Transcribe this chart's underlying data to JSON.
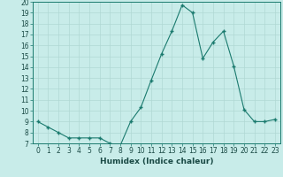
{
  "x": [
    0,
    1,
    2,
    3,
    4,
    5,
    6,
    7,
    8,
    9,
    10,
    11,
    12,
    13,
    14,
    15,
    16,
    17,
    18,
    19,
    20,
    21,
    22,
    23
  ],
  "y": [
    9,
    8.5,
    8,
    7.5,
    7.5,
    7.5,
    7.5,
    7,
    6.8,
    9,
    10.3,
    12.8,
    15.2,
    17.3,
    19.7,
    19.0,
    14.8,
    16.3,
    17.3,
    14.1,
    10.1,
    9.0,
    9.0,
    9.2
  ],
  "line_color": "#1a7a6e",
  "marker_color": "#1a7a6e",
  "bg_color": "#c8ece9",
  "grid_color": "#b0d8d4",
  "xlabel": "Humidex (Indice chaleur)",
  "ylim": [
    7,
    20
  ],
  "xlim": [
    -0.5,
    23.5
  ],
  "yticks": [
    7,
    8,
    9,
    10,
    11,
    12,
    13,
    14,
    15,
    16,
    17,
    18,
    19,
    20
  ],
  "xticks": [
    0,
    1,
    2,
    3,
    4,
    5,
    6,
    7,
    8,
    9,
    10,
    11,
    12,
    13,
    14,
    15,
    16,
    17,
    18,
    19,
    20,
    21,
    22,
    23
  ],
  "label_fontsize": 6.5,
  "tick_fontsize": 5.5
}
